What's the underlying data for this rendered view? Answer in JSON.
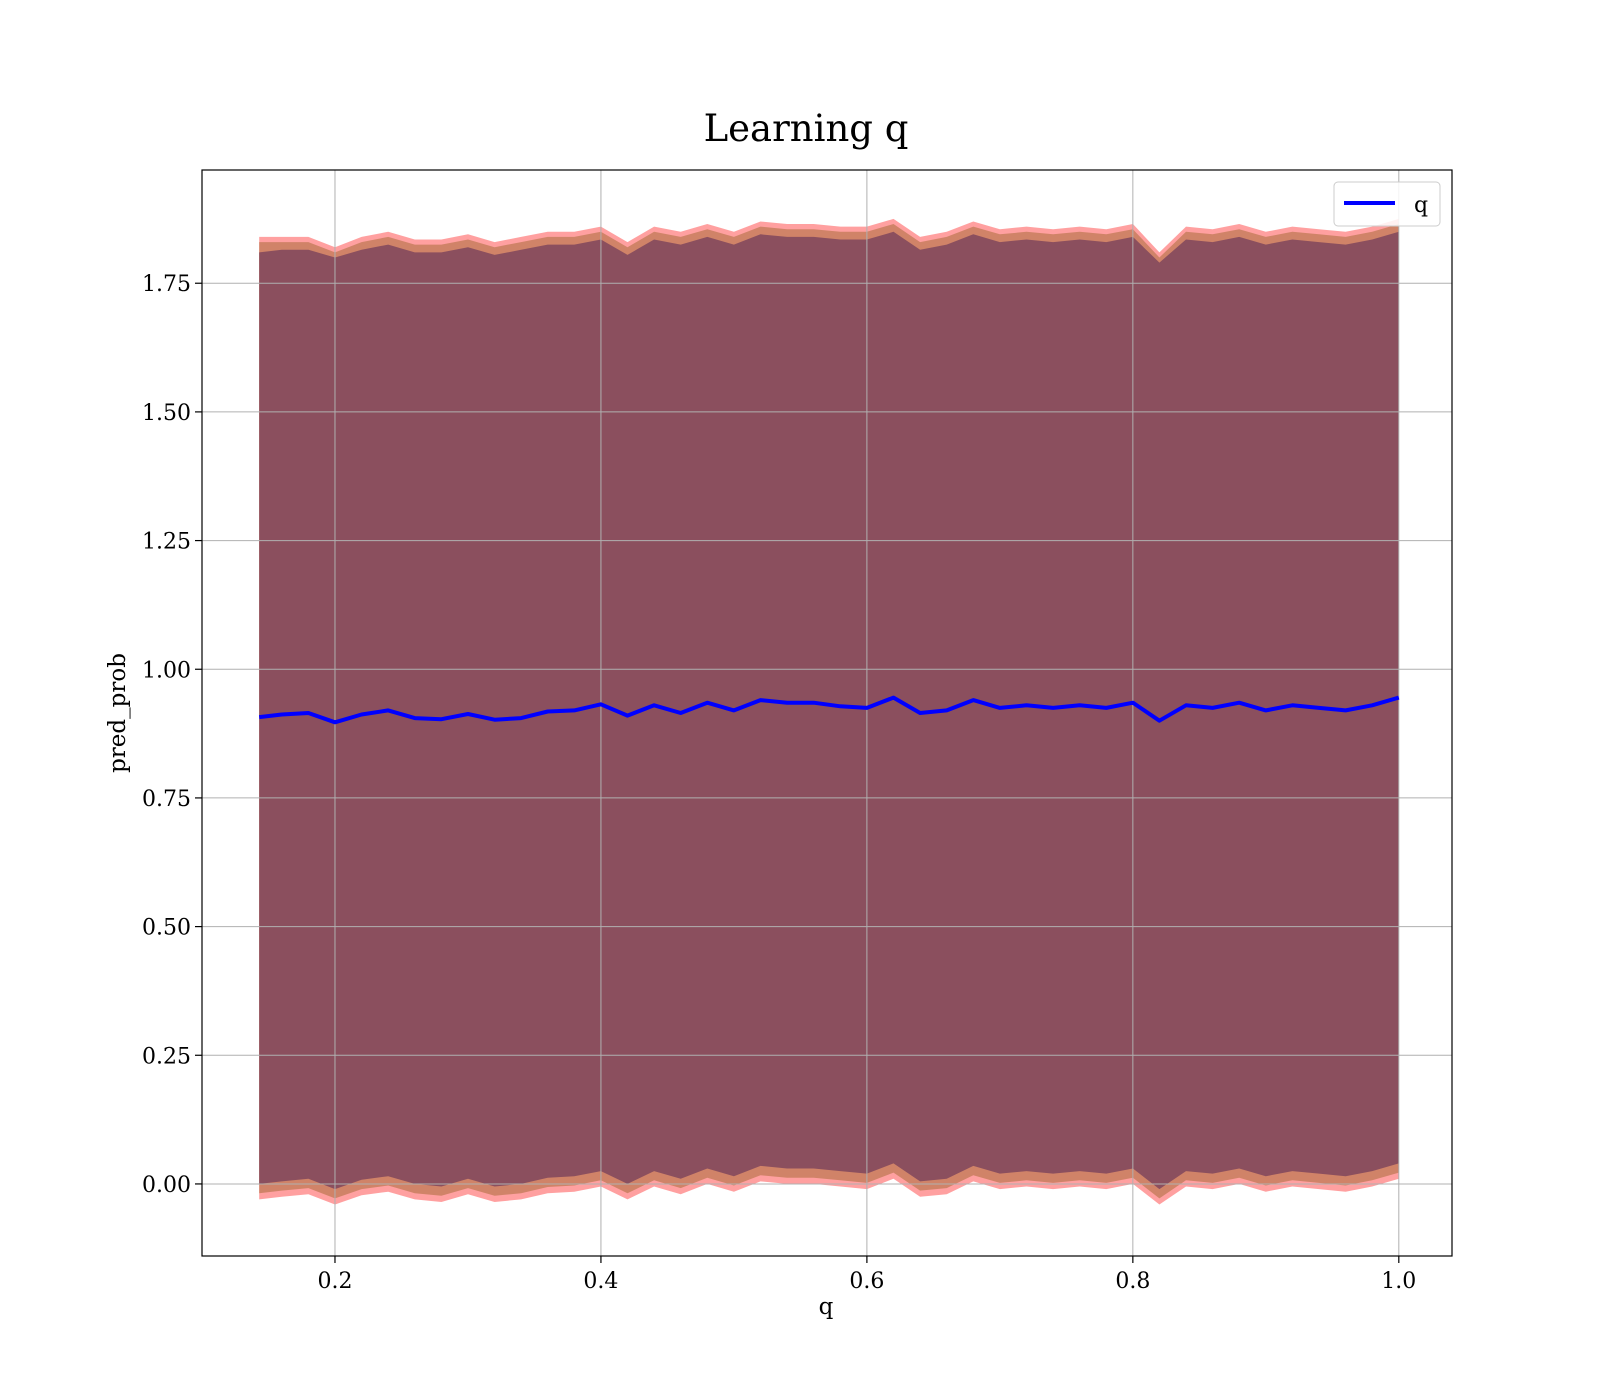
{
  "chart_data": {
    "type": "line",
    "title": "Learning q",
    "xlabel": "q",
    "ylabel": "pred_prob",
    "xlim": [
      0.1,
      1.04
    ],
    "ylim": [
      -0.14,
      1.97
    ],
    "xticks": [
      0.2,
      0.4,
      0.6,
      0.8,
      1.0
    ],
    "xtick_labels": [
      "0.2",
      "0.4",
      "0.6",
      "0.8",
      "1.0"
    ],
    "yticks": [
      0.0,
      0.25,
      0.5,
      0.75,
      1.0,
      1.25,
      1.5,
      1.75
    ],
    "ytick_labels": [
      "0.00",
      "0.25",
      "0.50",
      "0.75",
      "1.00",
      "1.25",
      "1.50",
      "1.75"
    ],
    "grid": true,
    "legend": {
      "placement": "top-right",
      "entries": [
        "q"
      ]
    },
    "colors": {
      "line": "#0000ff",
      "inner_band": "#8b4f5e",
      "middle_band": "#c07a55",
      "outer_band": "#ff8080"
    },
    "series": [
      {
        "name": "q",
        "x": [
          0.143,
          0.16,
          0.18,
          0.2,
          0.22,
          0.24,
          0.26,
          0.28,
          0.3,
          0.32,
          0.34,
          0.36,
          0.38,
          0.4,
          0.42,
          0.44,
          0.46,
          0.48,
          0.5,
          0.52,
          0.54,
          0.56,
          0.58,
          0.6,
          0.62,
          0.64,
          0.66,
          0.68,
          0.7,
          0.72,
          0.74,
          0.76,
          0.78,
          0.8,
          0.82,
          0.84,
          0.86,
          0.88,
          0.9,
          0.92,
          0.94,
          0.96,
          0.98,
          1.0
        ],
        "y": [
          0.907,
          0.912,
          0.915,
          0.897,
          0.912,
          0.92,
          0.905,
          0.903,
          0.913,
          0.902,
          0.905,
          0.918,
          0.92,
          0.932,
          0.91,
          0.93,
          0.915,
          0.935,
          0.92,
          0.94,
          0.935,
          0.935,
          0.928,
          0.925,
          0.945,
          0.915,
          0.92,
          0.94,
          0.925,
          0.93,
          0.925,
          0.93,
          0.925,
          0.935,
          0.9,
          0.93,
          0.925,
          0.935,
          0.92,
          0.93,
          0.925,
          0.92,
          0.93,
          0.945
        ]
      }
    ],
    "bands": [
      {
        "upper": [
          1.84,
          1.84,
          1.84,
          1.82,
          1.84,
          1.85,
          1.835,
          1.835,
          1.845,
          1.83,
          1.84,
          1.85,
          1.85,
          1.86,
          1.83,
          1.86,
          1.85,
          1.865,
          1.85,
          1.87,
          1.865,
          1.865,
          1.86,
          1.86,
          1.875,
          1.84,
          1.85,
          1.87,
          1.855,
          1.86,
          1.855,
          1.86,
          1.855,
          1.865,
          1.81,
          1.86,
          1.855,
          1.865,
          1.85,
          1.86,
          1.855,
          1.85,
          1.86,
          1.875
        ],
        "lower": [
          -0.03,
          -0.025,
          -0.02,
          -0.04,
          -0.022,
          -0.015,
          -0.03,
          -0.035,
          -0.02,
          -0.035,
          -0.03,
          -0.018,
          -0.015,
          -0.005,
          -0.03,
          -0.005,
          -0.02,
          0.0,
          -0.015,
          0.005,
          0.0,
          0.0,
          -0.005,
          -0.01,
          0.01,
          -0.025,
          -0.02,
          0.005,
          -0.01,
          -0.005,
          -0.01,
          -0.005,
          -0.01,
          0.0,
          -0.04,
          -0.005,
          -0.01,
          0.0,
          -0.015,
          -0.005,
          -0.01,
          -0.015,
          -0.005,
          0.01
        ]
      },
      {
        "upper": [
          1.83,
          1.83,
          1.83,
          1.81,
          1.83,
          1.84,
          1.825,
          1.825,
          1.835,
          1.82,
          1.83,
          1.84,
          1.84,
          1.85,
          1.82,
          1.85,
          1.84,
          1.855,
          1.84,
          1.86,
          1.855,
          1.855,
          1.85,
          1.85,
          1.865,
          1.83,
          1.84,
          1.86,
          1.845,
          1.85,
          1.845,
          1.85,
          1.845,
          1.855,
          1.8,
          1.85,
          1.845,
          1.855,
          1.84,
          1.85,
          1.845,
          1.84,
          1.85,
          1.865
        ],
        "lower": [
          -0.018,
          -0.013,
          -0.008,
          -0.028,
          -0.01,
          -0.003,
          -0.018,
          -0.023,
          -0.008,
          -0.023,
          -0.018,
          -0.006,
          -0.003,
          0.007,
          -0.018,
          0.007,
          -0.008,
          0.012,
          -0.003,
          0.017,
          0.012,
          0.012,
          0.007,
          0.002,
          0.022,
          -0.013,
          -0.008,
          0.017,
          0.002,
          0.007,
          0.002,
          0.007,
          0.002,
          0.012,
          -0.028,
          0.007,
          0.002,
          0.012,
          -0.003,
          0.007,
          0.002,
          -0.003,
          0.007,
          0.022
        ]
      },
      {
        "upper": [
          1.81,
          1.815,
          1.815,
          1.8,
          1.815,
          1.825,
          1.81,
          1.81,
          1.82,
          1.805,
          1.815,
          1.825,
          1.825,
          1.835,
          1.805,
          1.835,
          1.825,
          1.84,
          1.825,
          1.845,
          1.84,
          1.84,
          1.835,
          1.835,
          1.85,
          1.815,
          1.825,
          1.845,
          1.83,
          1.835,
          1.83,
          1.835,
          1.83,
          1.84,
          1.79,
          1.835,
          1.83,
          1.84,
          1.825,
          1.835,
          1.83,
          1.825,
          1.835,
          1.85
        ],
        "lower": [
          0.0,
          0.005,
          0.01,
          -0.01,
          0.008,
          0.015,
          0.0,
          -0.005,
          0.01,
          -0.005,
          0.0,
          0.012,
          0.015,
          0.025,
          0.0,
          0.025,
          0.01,
          0.03,
          0.015,
          0.035,
          0.03,
          0.03,
          0.025,
          0.02,
          0.04,
          0.005,
          0.01,
          0.035,
          0.02,
          0.025,
          0.02,
          0.025,
          0.02,
          0.03,
          -0.01,
          0.025,
          0.02,
          0.03,
          0.015,
          0.025,
          0.02,
          0.015,
          0.025,
          0.04
        ]
      }
    ]
  }
}
